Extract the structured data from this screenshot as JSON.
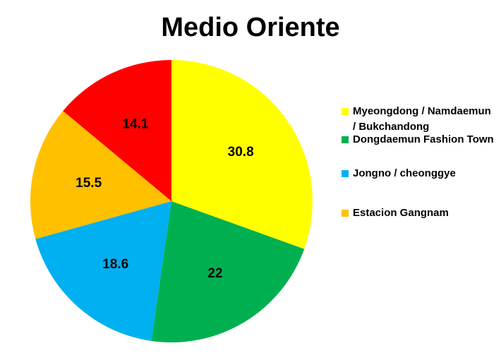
{
  "chart_data": {
    "type": "pie",
    "title": "Medio Oriente",
    "categories": [
      "Myeongdong / Namdaemun / Bukchandong",
      "Dongdaemun Fashion Town",
      "Jongno / cheonggye",
      "Estacion Gangnam",
      ""
    ],
    "values": [
      30.8,
      22,
      18.6,
      15.5,
      14.1
    ],
    "value_labels": [
      "30.8",
      "22",
      "18.6",
      "15.5",
      "14.1"
    ],
    "colors": [
      "#FFFF00",
      "#00B050",
      "#00B0F0",
      "#FFC000",
      "#FF0000"
    ],
    "legend_position": "right"
  }
}
